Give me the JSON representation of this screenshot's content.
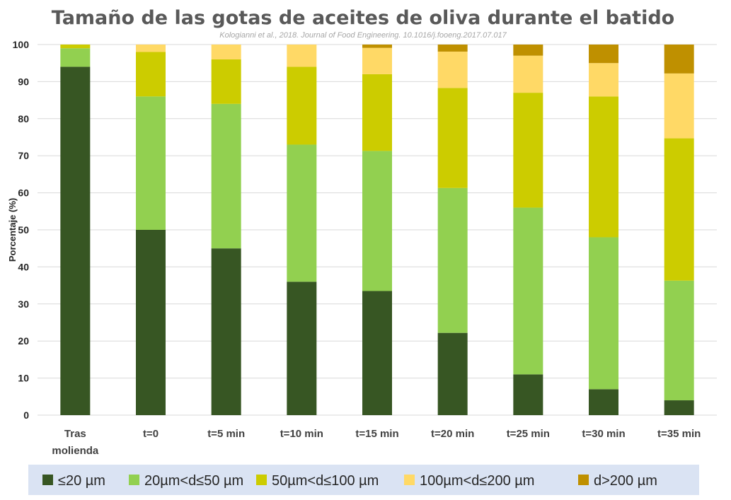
{
  "chart_data": {
    "type": "bar",
    "stacked": true,
    "title": "Tamaño de las gotas de aceites de oliva durante el batido",
    "subtitle": "Kologianni et al., 2018. Journal of  Food Engineering. 10.1016/j.fooeng.2017.07.017",
    "xlabel": "",
    "ylabel": "Porcentaje (%)",
    "ylim": [
      0,
      100
    ],
    "yticks": [
      0,
      10,
      20,
      30,
      40,
      50,
      60,
      70,
      80,
      90,
      100
    ],
    "grid": true,
    "legend_position": "bottom",
    "categories": [
      [
        "Tras",
        "molienda"
      ],
      [
        "t=0"
      ],
      [
        "t=5 min"
      ],
      [
        "t=10 min"
      ],
      [
        "t=15 min"
      ],
      [
        "t=20 min"
      ],
      [
        "t=25 min"
      ],
      [
        "t=30 min"
      ],
      [
        "t=35 min"
      ]
    ],
    "series": [
      {
        "name": "≤20 µm",
        "color": "#375623",
        "values": [
          94,
          50,
          45,
          36,
          33.5,
          22.2,
          11,
          7,
          4
        ]
      },
      {
        "name": "20µm<d≤50 µm",
        "color": "#92d050",
        "values": [
          5,
          36,
          39,
          37,
          37.8,
          39.1,
          45,
          41,
          32.3
        ]
      },
      {
        "name": "50µm<d≤100 µm",
        "color": "#cccc00",
        "values": [
          1,
          12,
          12,
          21,
          20.7,
          27,
          31,
          38,
          38.4
        ]
      },
      {
        "name": "100µm<d≤200 µm",
        "color": "#ffd966",
        "values": [
          0,
          2,
          4,
          6,
          7.1,
          9.8,
          10,
          9,
          17.5
        ]
      },
      {
        "name": "d>200 µm",
        "color": "#bf9000",
        "values": [
          0,
          0,
          0,
          0,
          0.9,
          1.9,
          3,
          5,
          7.8
        ]
      }
    ]
  },
  "colors": {
    "grid": "#d9d9d9",
    "legend_bg": "#dae3f3"
  }
}
